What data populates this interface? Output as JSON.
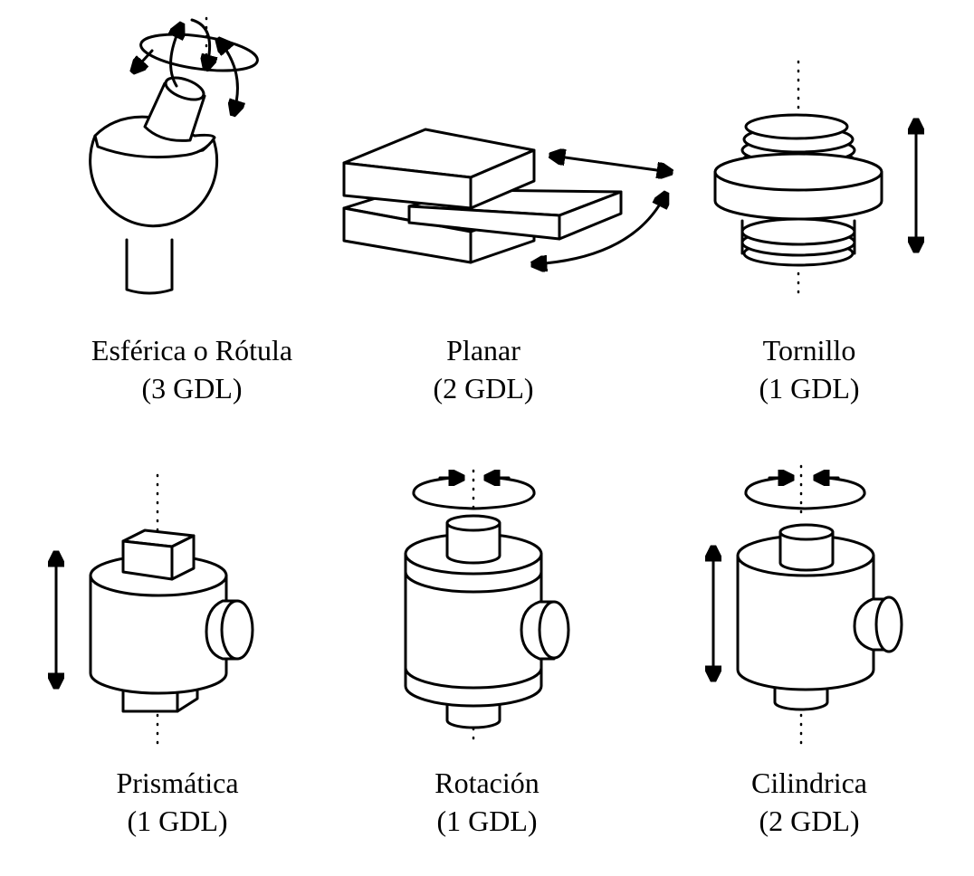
{
  "figure": {
    "joints": [
      {
        "id": "esferica",
        "name": "Esférica o Rótula",
        "dof": "(3 GDL)"
      },
      {
        "id": "planar",
        "name": "Planar",
        "dof": "(2 GDL)"
      },
      {
        "id": "tornillo",
        "name": "Tornillo",
        "dof": "(1 GDL)"
      },
      {
        "id": "prismatica",
        "name": "Prismática",
        "dof": "(1 GDL)"
      },
      {
        "id": "rotacion",
        "name": "Rotación",
        "dof": "(1 GDL)"
      },
      {
        "id": "cilindrica",
        "name": "Cilindrica",
        "dof": "(2 GDL)"
      }
    ],
    "colors": {
      "ink": "#000000",
      "paper": "#ffffff"
    }
  }
}
